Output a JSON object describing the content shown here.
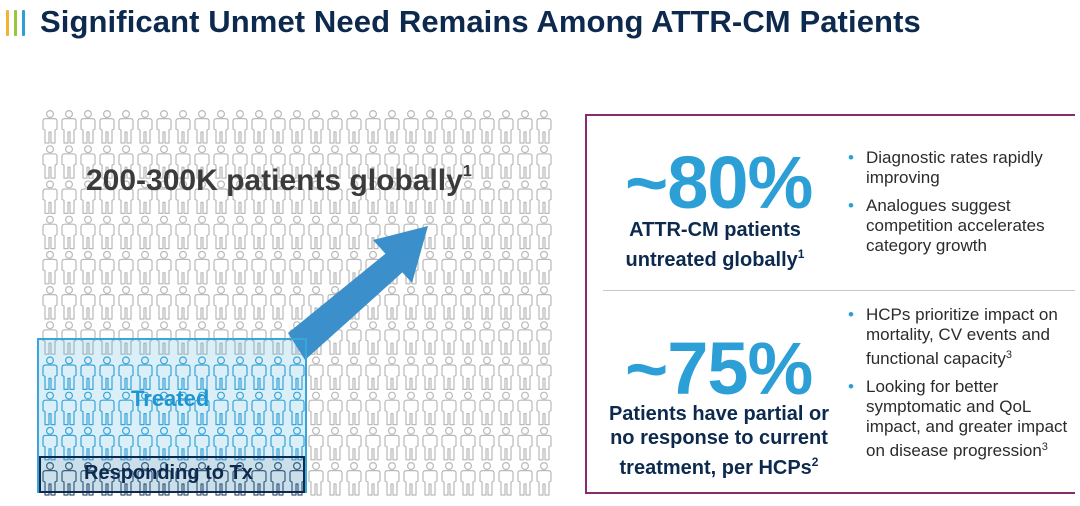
{
  "header": {
    "title": "Significant Unmet Need Remains Among ATTR-CM Patients",
    "accent_colors": [
      "#f2b233",
      "#9bc53d",
      "#2c9fd6"
    ]
  },
  "people_chart": {
    "total_label": "200-300K patients globally",
    "total_label_ref": "1",
    "treated_label": "Treated",
    "responding_label": "Responding to Tx",
    "icon_name": "person-icon",
    "colors": {
      "base": "#b9b9b9",
      "treated": "#3aa5d8",
      "responding": "#0d2a4e",
      "arrow": "#3b8fcb"
    }
  },
  "stats": [
    {
      "value": "~80%",
      "caption": "ATTR-CM patients untreated globally",
      "caption_ref": "1",
      "bullets": [
        {
          "text": "Diagnostic rates rapidly improving",
          "ref": ""
        },
        {
          "text": "Analogues suggest competition accelerates category growth",
          "ref": ""
        }
      ]
    },
    {
      "value": "~75%",
      "caption": "Patients have partial or no response to current treatment, per HCPs",
      "caption_ref": "2",
      "bullets": [
        {
          "text": "HCPs prioritize impact on mortality, CV events and functional capacity",
          "ref": "3"
        },
        {
          "text": "Looking for better symptomatic and QoL impact, and greater impact on disease progression",
          "ref": "3"
        }
      ]
    }
  ]
}
